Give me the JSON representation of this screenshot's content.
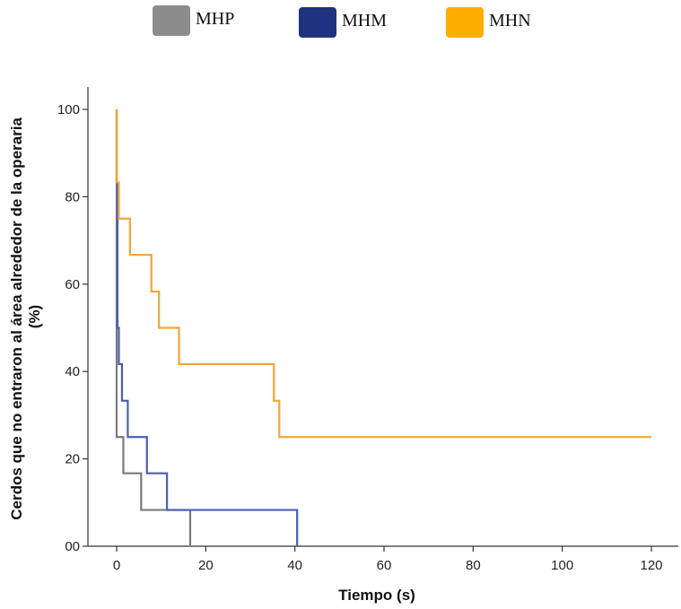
{
  "chart_data": {
    "type": "line",
    "step": true,
    "title": "",
    "xlabel": "Tiempo (s)",
    "ylabel": "Cerdos que no entraron al área alrededor de la operaria (%)",
    "xlim": [
      -6,
      126
    ],
    "ylim": [
      0,
      105
    ],
    "xticks": [
      0,
      20,
      40,
      60,
      80,
      100,
      120
    ],
    "xtick_labels": [
      "0",
      "20",
      "40",
      "60",
      "80",
      "100",
      "120"
    ],
    "yticks": [
      0,
      20,
      40,
      60,
      80,
      100
    ],
    "ytick_labels": [
      "00",
      "20",
      "40",
      "60",
      "80",
      "100"
    ],
    "legend_position": "top",
    "series": [
      {
        "name": "MHP",
        "color": "#7a7a7a",
        "legend_color": "#8c8c8c",
        "points": [
          [
            0,
            100
          ],
          [
            0,
            25
          ],
          [
            1.5,
            25
          ],
          [
            1.5,
            16.7
          ],
          [
            5.5,
            16.7
          ],
          [
            5.5,
            8.3
          ],
          [
            16.5,
            8.3
          ],
          [
            16.5,
            0
          ]
        ]
      },
      {
        "name": "MHM",
        "color": "#4a5fb5",
        "legend_color": "#1f3380",
        "points": [
          [
            0,
            100
          ],
          [
            0,
            83.3
          ],
          [
            0.2,
            83.3
          ],
          [
            0.2,
            50
          ],
          [
            0.5,
            50
          ],
          [
            0.5,
            41.7
          ],
          [
            1.2,
            41.7
          ],
          [
            1.2,
            33.3
          ],
          [
            2.5,
            33.3
          ],
          [
            2.5,
            25
          ],
          [
            6.8,
            25
          ],
          [
            6.8,
            16.7
          ],
          [
            11.3,
            16.7
          ],
          [
            11.3,
            8.3
          ],
          [
            40.5,
            8.3
          ],
          [
            40.5,
            0
          ]
        ]
      },
      {
        "name": "MHN",
        "color": "#f7a530",
        "legend_color": "#ffad00",
        "points": [
          [
            0,
            100
          ],
          [
            0,
            83.3
          ],
          [
            0.5,
            83.3
          ],
          [
            0.5,
            75
          ],
          [
            3,
            75
          ],
          [
            3,
            66.7
          ],
          [
            7.8,
            66.7
          ],
          [
            7.8,
            58.3
          ],
          [
            9.5,
            58.3
          ],
          [
            9.5,
            50
          ],
          [
            14,
            50
          ],
          [
            14,
            41.7
          ],
          [
            35.3,
            41.7
          ],
          [
            35.3,
            33.3
          ],
          [
            36.5,
            33.3
          ],
          [
            36.5,
            25
          ],
          [
            120,
            25
          ]
        ]
      }
    ]
  }
}
